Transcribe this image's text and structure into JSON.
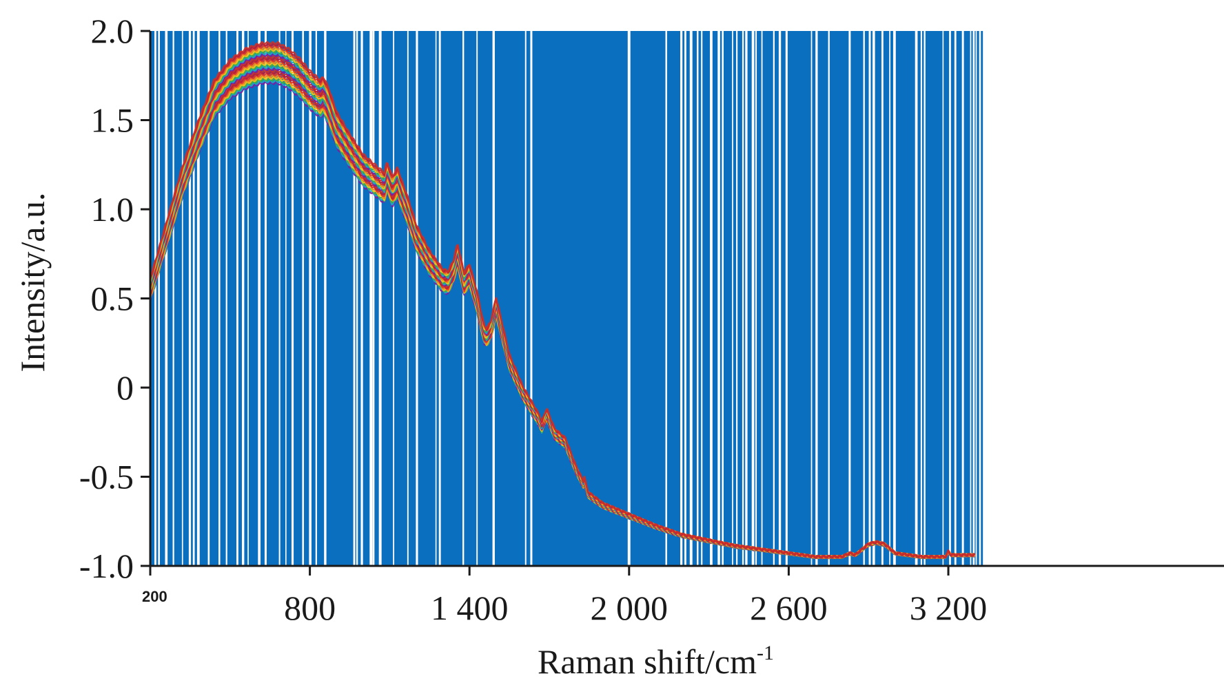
{
  "chart_data": {
    "type": "line",
    "title": "",
    "xlabel": "Raman shift/cm",
    "xlabel_superscript": "-1",
    "ylabel": "Intensity/a.u.",
    "xlim": [
      200,
      3450
    ],
    "ylim": [
      -1.0,
      2.0
    ],
    "x_ticks": [
      {
        "value": 200,
        "label": "200",
        "style": "small"
      },
      {
        "value": 800,
        "label": "800",
        "style": "normal"
      },
      {
        "value": 1400,
        "label": "1 400",
        "style": "normal"
      },
      {
        "value": 2000,
        "label": "2 000",
        "style": "normal"
      },
      {
        "value": 2600,
        "label": "2 600",
        "style": "normal"
      },
      {
        "value": 3200,
        "label": "3 200",
        "style": "normal"
      }
    ],
    "y_ticks": [
      {
        "value": 2.0,
        "label": "2.0"
      },
      {
        "value": 1.5,
        "label": "1.5"
      },
      {
        "value": 1.0,
        "label": "1.0"
      },
      {
        "value": 0.5,
        "label": "0.5"
      },
      {
        "value": 0.0,
        "label": "0"
      },
      {
        "value": -0.5,
        "label": "-0.5"
      },
      {
        "value": -1.0,
        "label": "-1.0"
      }
    ],
    "background_band": {
      "color": "#0a6fbf",
      "x_range": [
        200,
        3330
      ],
      "y_range": [
        -1.0,
        2.0
      ],
      "gap_color": "#ffffff"
    },
    "series_colors": [
      "#7a1fa2",
      "#1aa3c8",
      "#3fae49",
      "#f2c318",
      "#f08a1d",
      "#e03a2a",
      "#b81e3a",
      "#c8322a"
    ],
    "spectrum_x": [
      200,
      260,
      320,
      380,
      440,
      500,
      560,
      620,
      680,
      720,
      760,
      800,
      840,
      850,
      870,
      900,
      950,
      1000,
      1040,
      1080,
      1090,
      1110,
      1130,
      1140,
      1170,
      1200,
      1250,
      1300,
      1320,
      1340,
      1355,
      1380,
      1400,
      1430,
      1445,
      1455,
      1465,
      1480,
      1500,
      1550,
      1600,
      1640,
      1660,
      1672,
      1690,
      1720,
      1760,
      1800,
      1830,
      1832,
      1845,
      1900,
      2000,
      2100,
      2200,
      2300,
      2400,
      2500,
      2600,
      2700,
      2800,
      2830,
      2850,
      2900,
      2930,
      2960,
      3000,
      3100,
      3190,
      3200,
      3210,
      3300
    ],
    "spectrum_y": [
      0.55,
      0.85,
      1.15,
      1.4,
      1.62,
      1.73,
      1.79,
      1.82,
      1.82,
      1.79,
      1.74,
      1.67,
      1.62,
      1.64,
      1.58,
      1.45,
      1.33,
      1.22,
      1.17,
      1.12,
      1.18,
      1.1,
      1.15,
      1.1,
      0.98,
      0.84,
      0.7,
      0.6,
      0.59,
      0.65,
      0.74,
      0.58,
      0.63,
      0.47,
      0.36,
      0.3,
      0.28,
      0.32,
      0.45,
      0.14,
      -0.03,
      -0.13,
      -0.18,
      -0.22,
      -0.15,
      -0.26,
      -0.31,
      -0.46,
      -0.55,
      -0.52,
      -0.6,
      -0.66,
      -0.72,
      -0.78,
      -0.83,
      -0.86,
      -0.89,
      -0.91,
      -0.93,
      -0.95,
      -0.95,
      -0.93,
      -0.94,
      -0.88,
      -0.87,
      -0.88,
      -0.93,
      -0.95,
      -0.95,
      -0.92,
      -0.94,
      -0.94
    ]
  }
}
